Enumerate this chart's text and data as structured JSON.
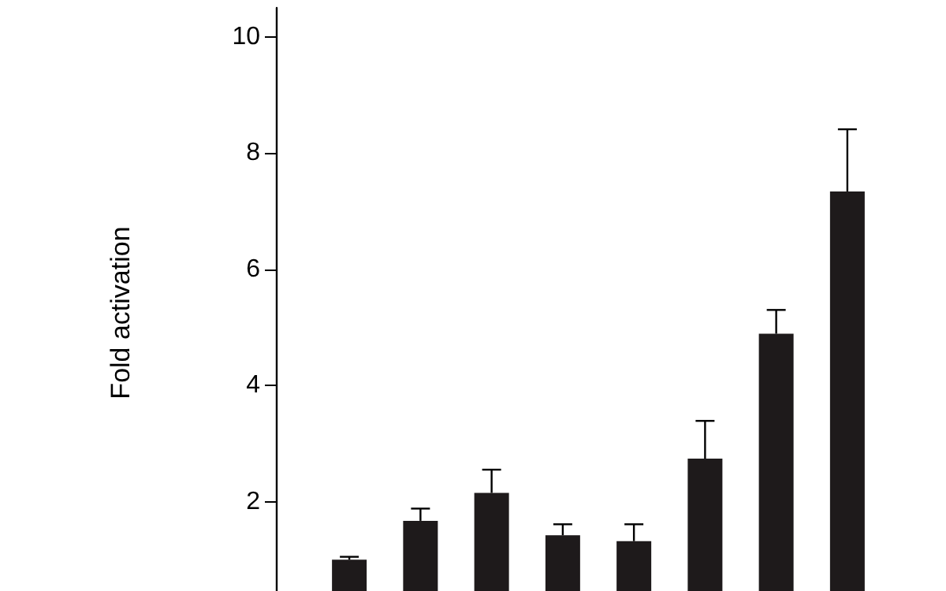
{
  "chart_data": {
    "type": "bar",
    "ylabel": "Fold activation",
    "categories": [
      null,
      null,
      null,
      null,
      null,
      null,
      null,
      null
    ],
    "values": [
      1.0,
      1.67,
      2.15,
      1.42,
      1.32,
      2.74,
      4.89,
      7.34
    ],
    "errors": [
      [
        1.0,
        1.05
      ],
      [
        1.67,
        1.88
      ],
      [
        2.15,
        2.55
      ],
      [
        1.42,
        1.61
      ],
      [
        1.32,
        1.61
      ],
      [
        2.74,
        3.39
      ],
      [
        4.89,
        5.3
      ],
      [
        7.34,
        8.41
      ]
    ],
    "color": "#1e1a1b",
    "ylim": [
      0,
      10.5
    ],
    "yticks": [
      2,
      4,
      6,
      8,
      10
    ],
    "grid": false
  }
}
